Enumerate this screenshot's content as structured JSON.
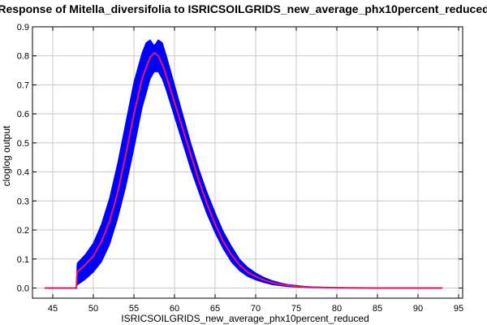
{
  "chart_data": {
    "type": "line",
    "title": "Response of Mitella_diversifolia to ISRICSOILGRIDS_new_average_phx10percent_reduced",
    "xlabel": "ISRICSOILGRIDS_new_average_phx10percent_reduced",
    "ylabel": "cloglog output",
    "xlim": [
      42.5,
      95.5
    ],
    "ylim": [
      -0.035,
      0.9
    ],
    "x_ticks": [
      45,
      50,
      55,
      60,
      65,
      70,
      75,
      80,
      85,
      90,
      95
    ],
    "y_ticks": [
      0.0,
      0.1,
      0.2,
      0.3,
      0.4,
      0.5,
      0.6,
      0.7,
      0.8,
      0.9
    ],
    "grid": true,
    "colors": {
      "mean": "#e8175d",
      "band": "#0000ff"
    },
    "x": [
      44.0,
      47.9,
      48.0,
      49.0,
      50.0,
      51.0,
      52.0,
      53.0,
      54.0,
      55.0,
      56.0,
      56.5,
      57.0,
      57.5,
      58.0,
      58.5,
      59.0,
      60.0,
      61.0,
      62.0,
      63.0,
      64.0,
      65.0,
      66.0,
      67.0,
      68.0,
      69.0,
      70.0,
      71.0,
      72.0,
      73.0,
      74.0,
      75.0,
      76.0,
      77.0,
      78.0,
      80.0,
      82.0,
      85.0,
      88.0,
      90.0,
      93.0
    ],
    "series": [
      {
        "values": [
          0.0,
          0.0,
          0.055,
          0.08,
          0.11,
          0.16,
          0.23,
          0.33,
          0.46,
          0.6,
          0.72,
          0.76,
          0.795,
          0.81,
          0.8,
          0.77,
          0.73,
          0.64,
          0.55,
          0.46,
          0.37,
          0.29,
          0.22,
          0.16,
          0.115,
          0.08,
          0.055,
          0.04,
          0.028,
          0.019,
          0.013,
          0.009,
          0.006,
          0.004,
          0.003,
          0.002,
          0.001,
          0.0005,
          0.0,
          0.0,
          0.0,
          0.0
        ]
      },
      {
        "values": [
          0.0,
          0.0,
          0.085,
          0.115,
          0.155,
          0.22,
          0.31,
          0.43,
          0.57,
          0.71,
          0.81,
          0.845,
          0.855,
          0.835,
          0.855,
          0.845,
          0.8,
          0.7,
          0.6,
          0.5,
          0.41,
          0.33,
          0.26,
          0.195,
          0.145,
          0.1,
          0.072,
          0.052,
          0.037,
          0.026,
          0.018,
          0.012,
          0.009,
          0.006,
          0.004,
          0.003,
          0.002,
          0.001,
          0.0005,
          0.0,
          0.0,
          0.0
        ]
      },
      {
        "values": [
          0.0,
          0.0,
          0.01,
          0.03,
          0.055,
          0.09,
          0.15,
          0.24,
          0.35,
          0.48,
          0.62,
          0.67,
          0.72,
          0.745,
          0.745,
          0.72,
          0.68,
          0.59,
          0.5,
          0.41,
          0.33,
          0.255,
          0.19,
          0.135,
          0.09,
          0.06,
          0.04,
          0.028,
          0.019,
          0.012,
          0.008,
          0.005,
          0.003,
          0.002,
          0.001,
          0.001,
          0.0,
          0.0,
          0.0,
          0.0,
          0.0,
          0.0
        ]
      }
    ]
  }
}
